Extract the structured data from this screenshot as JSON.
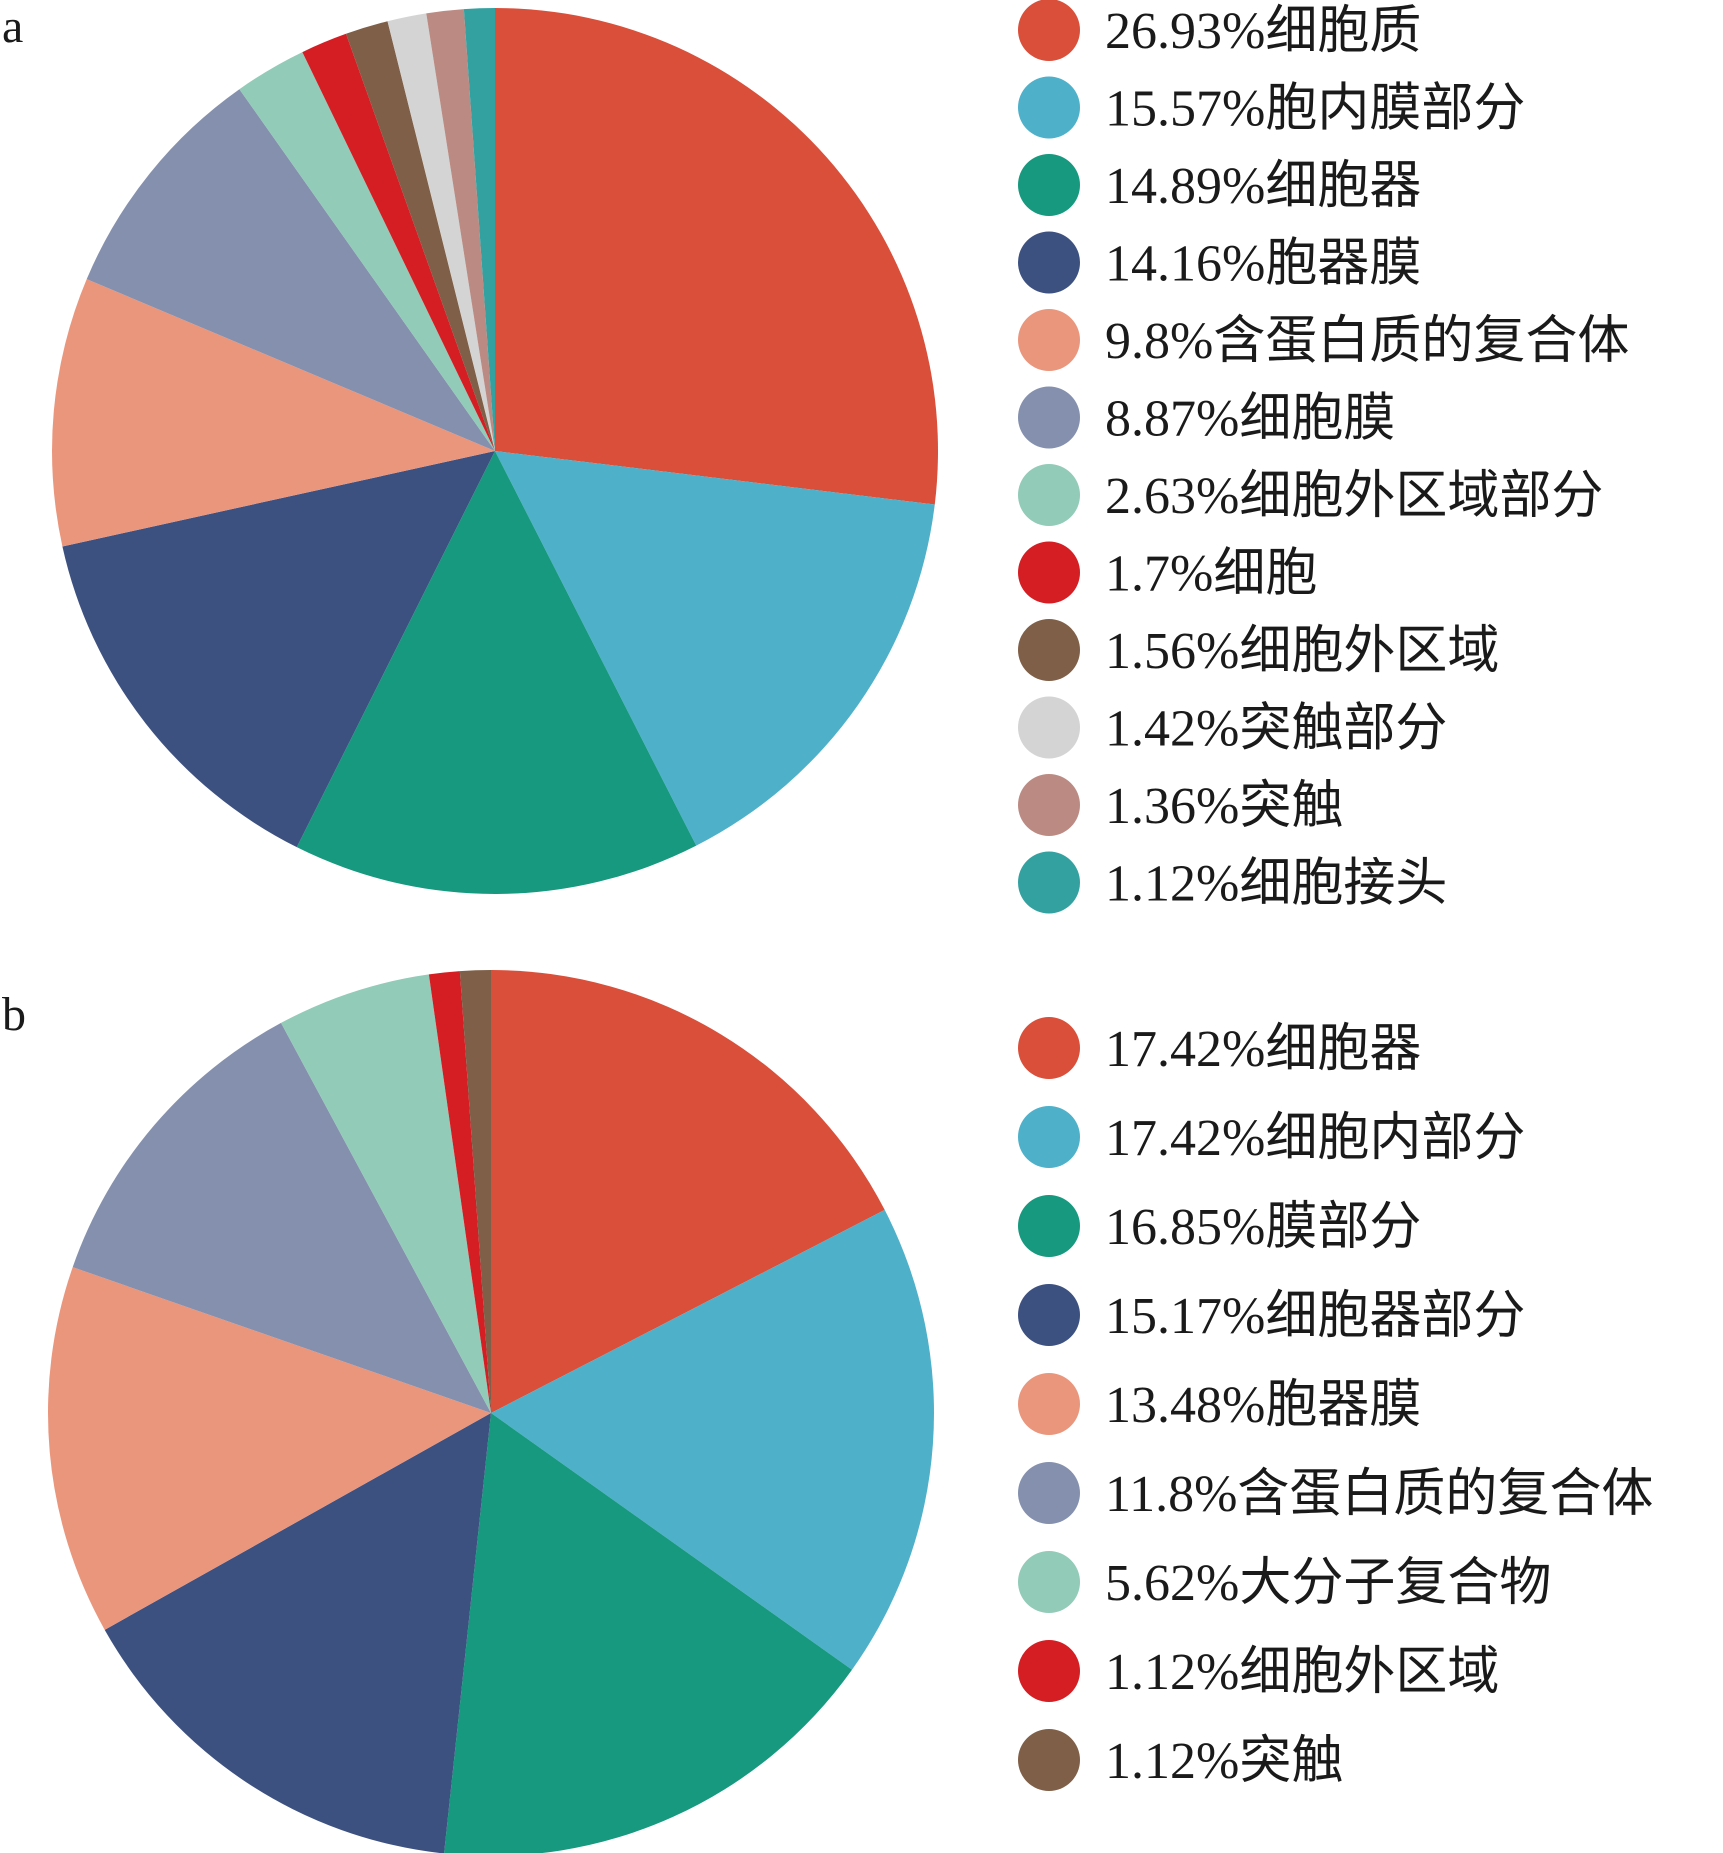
{
  "chart_data": [
    {
      "panel": "a",
      "type": "pie",
      "slices": [
        {
          "label": "26.93%细胞质",
          "value": 26.93,
          "color": "#d94f3a"
        },
        {
          "label": "15.57%胞内膜部分",
          "value": 15.57,
          "color": "#4eb0c9"
        },
        {
          "label": "14.89%细胞器",
          "value": 14.89,
          "color": "#16997e"
        },
        {
          "label": "14.16%胞器膜",
          "value": 14.16,
          "color": "#3d5181"
        },
        {
          "label": "9.8%含蛋白质的复合体",
          "value": 9.8,
          "color": "#ea967d"
        },
        {
          "label": "8.87%细胞膜",
          "value": 8.87,
          "color": "#8490ad"
        },
        {
          "label": "2.63%细胞外区域部分",
          "value": 2.63,
          "color": "#92cbb7"
        },
        {
          "label": "1.7%细胞",
          "value": 1.7,
          "color": "#d41e23"
        },
        {
          "label": "1.56%细胞外区域",
          "value": 1.56,
          "color": "#7f5f47"
        },
        {
          "label": "1.42%突触部分",
          "value": 1.42,
          "color": "#d4d4d4"
        },
        {
          "label": "1.36%突触",
          "value": 1.36,
          "color": "#bb8b83"
        },
        {
          "label": "1.12%细胞接头",
          "value": 1.12,
          "color": "#34a1a1"
        }
      ],
      "legend_position": "right"
    },
    {
      "panel": "b",
      "type": "pie",
      "slices": [
        {
          "label": "17.42%细胞器",
          "value": 17.42,
          "color": "#d94f3a"
        },
        {
          "label": "17.42%细胞内部分",
          "value": 17.42,
          "color": "#4eb0c9"
        },
        {
          "label": "16.85%膜部分",
          "value": 16.85,
          "color": "#16997e"
        },
        {
          "label": "15.17%细胞器部分",
          "value": 15.17,
          "color": "#3d5181"
        },
        {
          "label": "13.48%胞器膜",
          "value": 13.48,
          "color": "#ea967d"
        },
        {
          "label": "11.8%含蛋白质的复合体",
          "value": 11.8,
          "color": "#8490ad"
        },
        {
          "label": "5.62%大分子复合物",
          "value": 5.62,
          "color": "#92cbb7"
        },
        {
          "label": "1.12%细胞外区域",
          "value": 1.12,
          "color": "#d41e23"
        },
        {
          "label": "1.12%突触",
          "value": 1.12,
          "color": "#7f5f47"
        }
      ],
      "legend_position": "right"
    }
  ]
}
